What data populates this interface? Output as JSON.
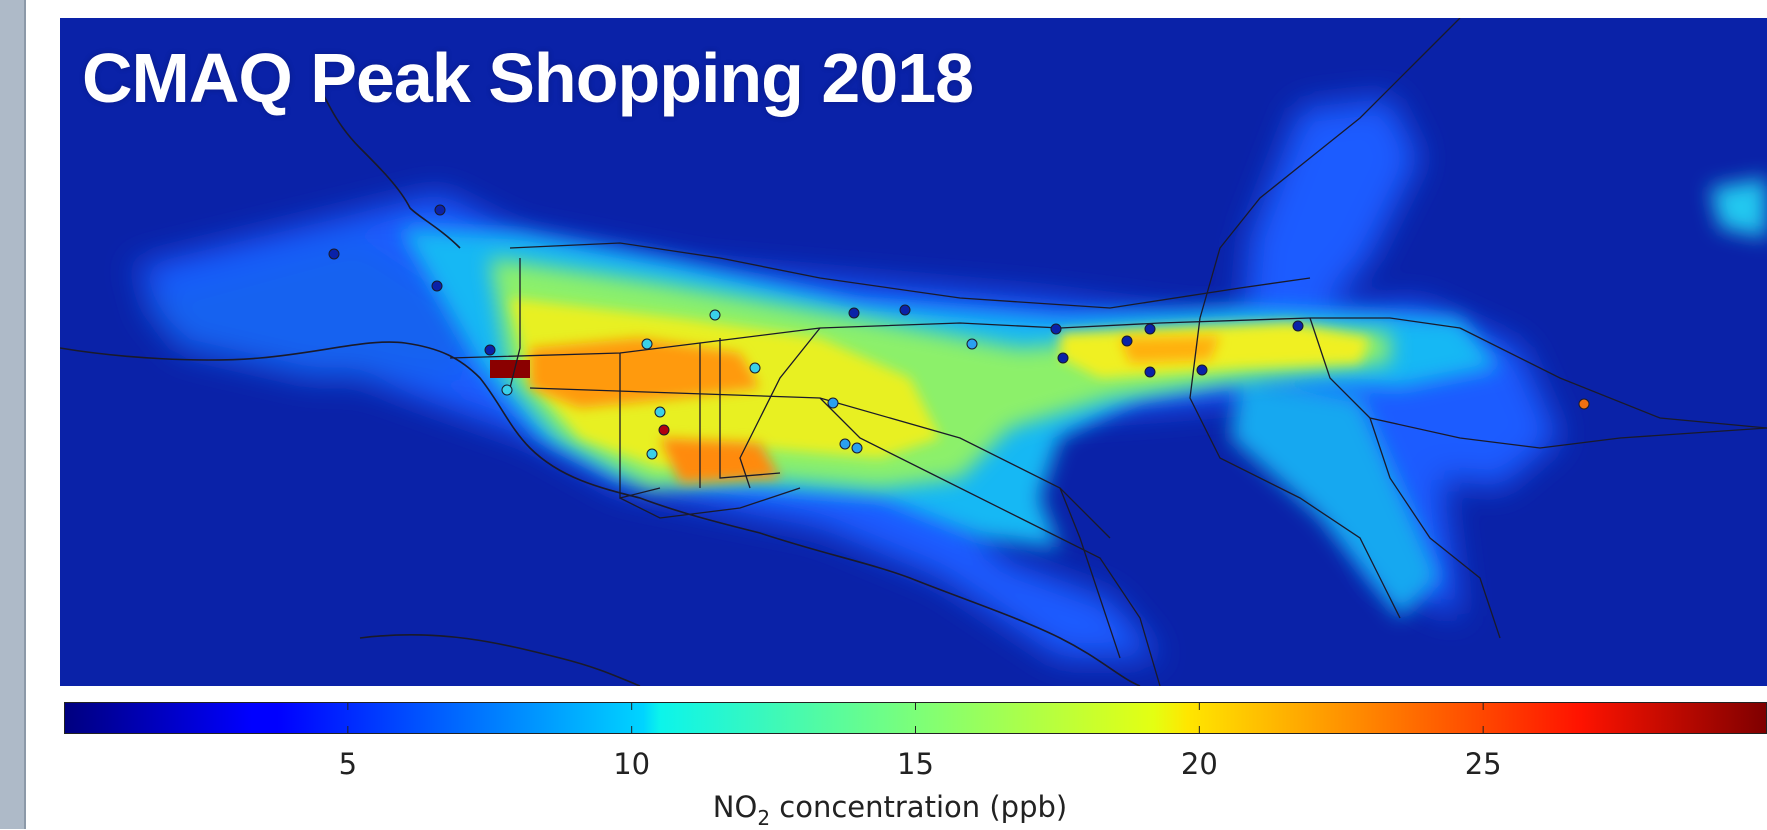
{
  "title": "CMAQ Peak Shopping 2018",
  "colorbar": {
    "label_prefix": "NO",
    "label_subscript": "2",
    "label_suffix": " concentration (ppb)",
    "min": 0,
    "max": 30,
    "ticks": [
      5,
      10,
      15,
      20,
      25
    ],
    "colormap": "jet"
  },
  "map": {
    "layers": [
      "NO2 concentration grid",
      "highway network",
      "coastline",
      "monitoring sites"
    ],
    "background_color": "#0a22a8"
  }
}
